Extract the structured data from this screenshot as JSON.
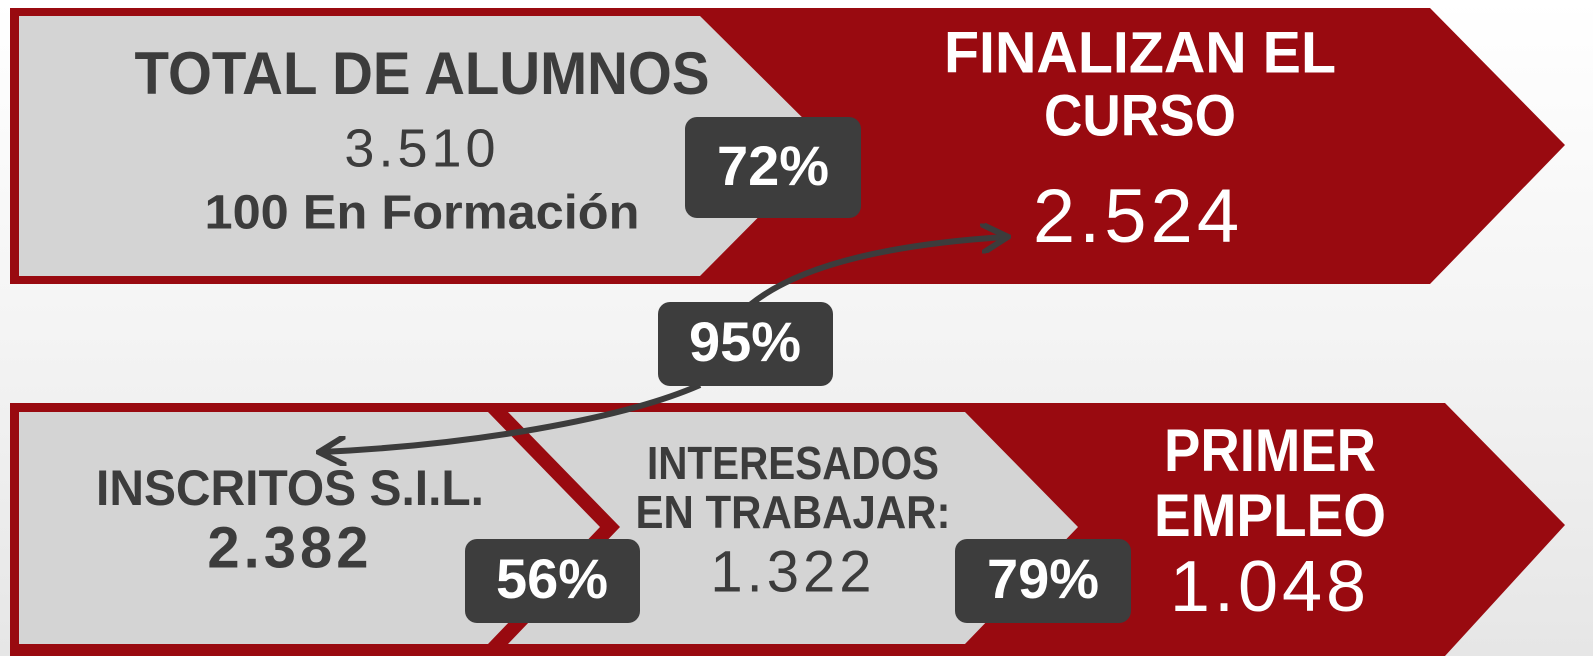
{
  "top": {
    "total": {
      "title": "TOTAL DE ALUMNOS",
      "value": "3.510",
      "note": "100 En Formación"
    },
    "rate": "72%",
    "finish": {
      "title_lines": [
        "FINALIZAN EL",
        "CURSO"
      ],
      "value": "2.524"
    }
  },
  "link_rate": "95%",
  "bottom": {
    "registered": {
      "title": "INSCRITOS S.I.L.",
      "value": "2.382"
    },
    "rate_to_interested": "56%",
    "interested": {
      "title_lines": [
        "INTERESADOS",
        "EN TRABAJAR:"
      ],
      "value": "1.322"
    },
    "rate_to_job": "79%",
    "job": {
      "title_lines": [
        "PRIMER",
        "EMPLEO"
      ],
      "value": "1.048"
    }
  }
}
